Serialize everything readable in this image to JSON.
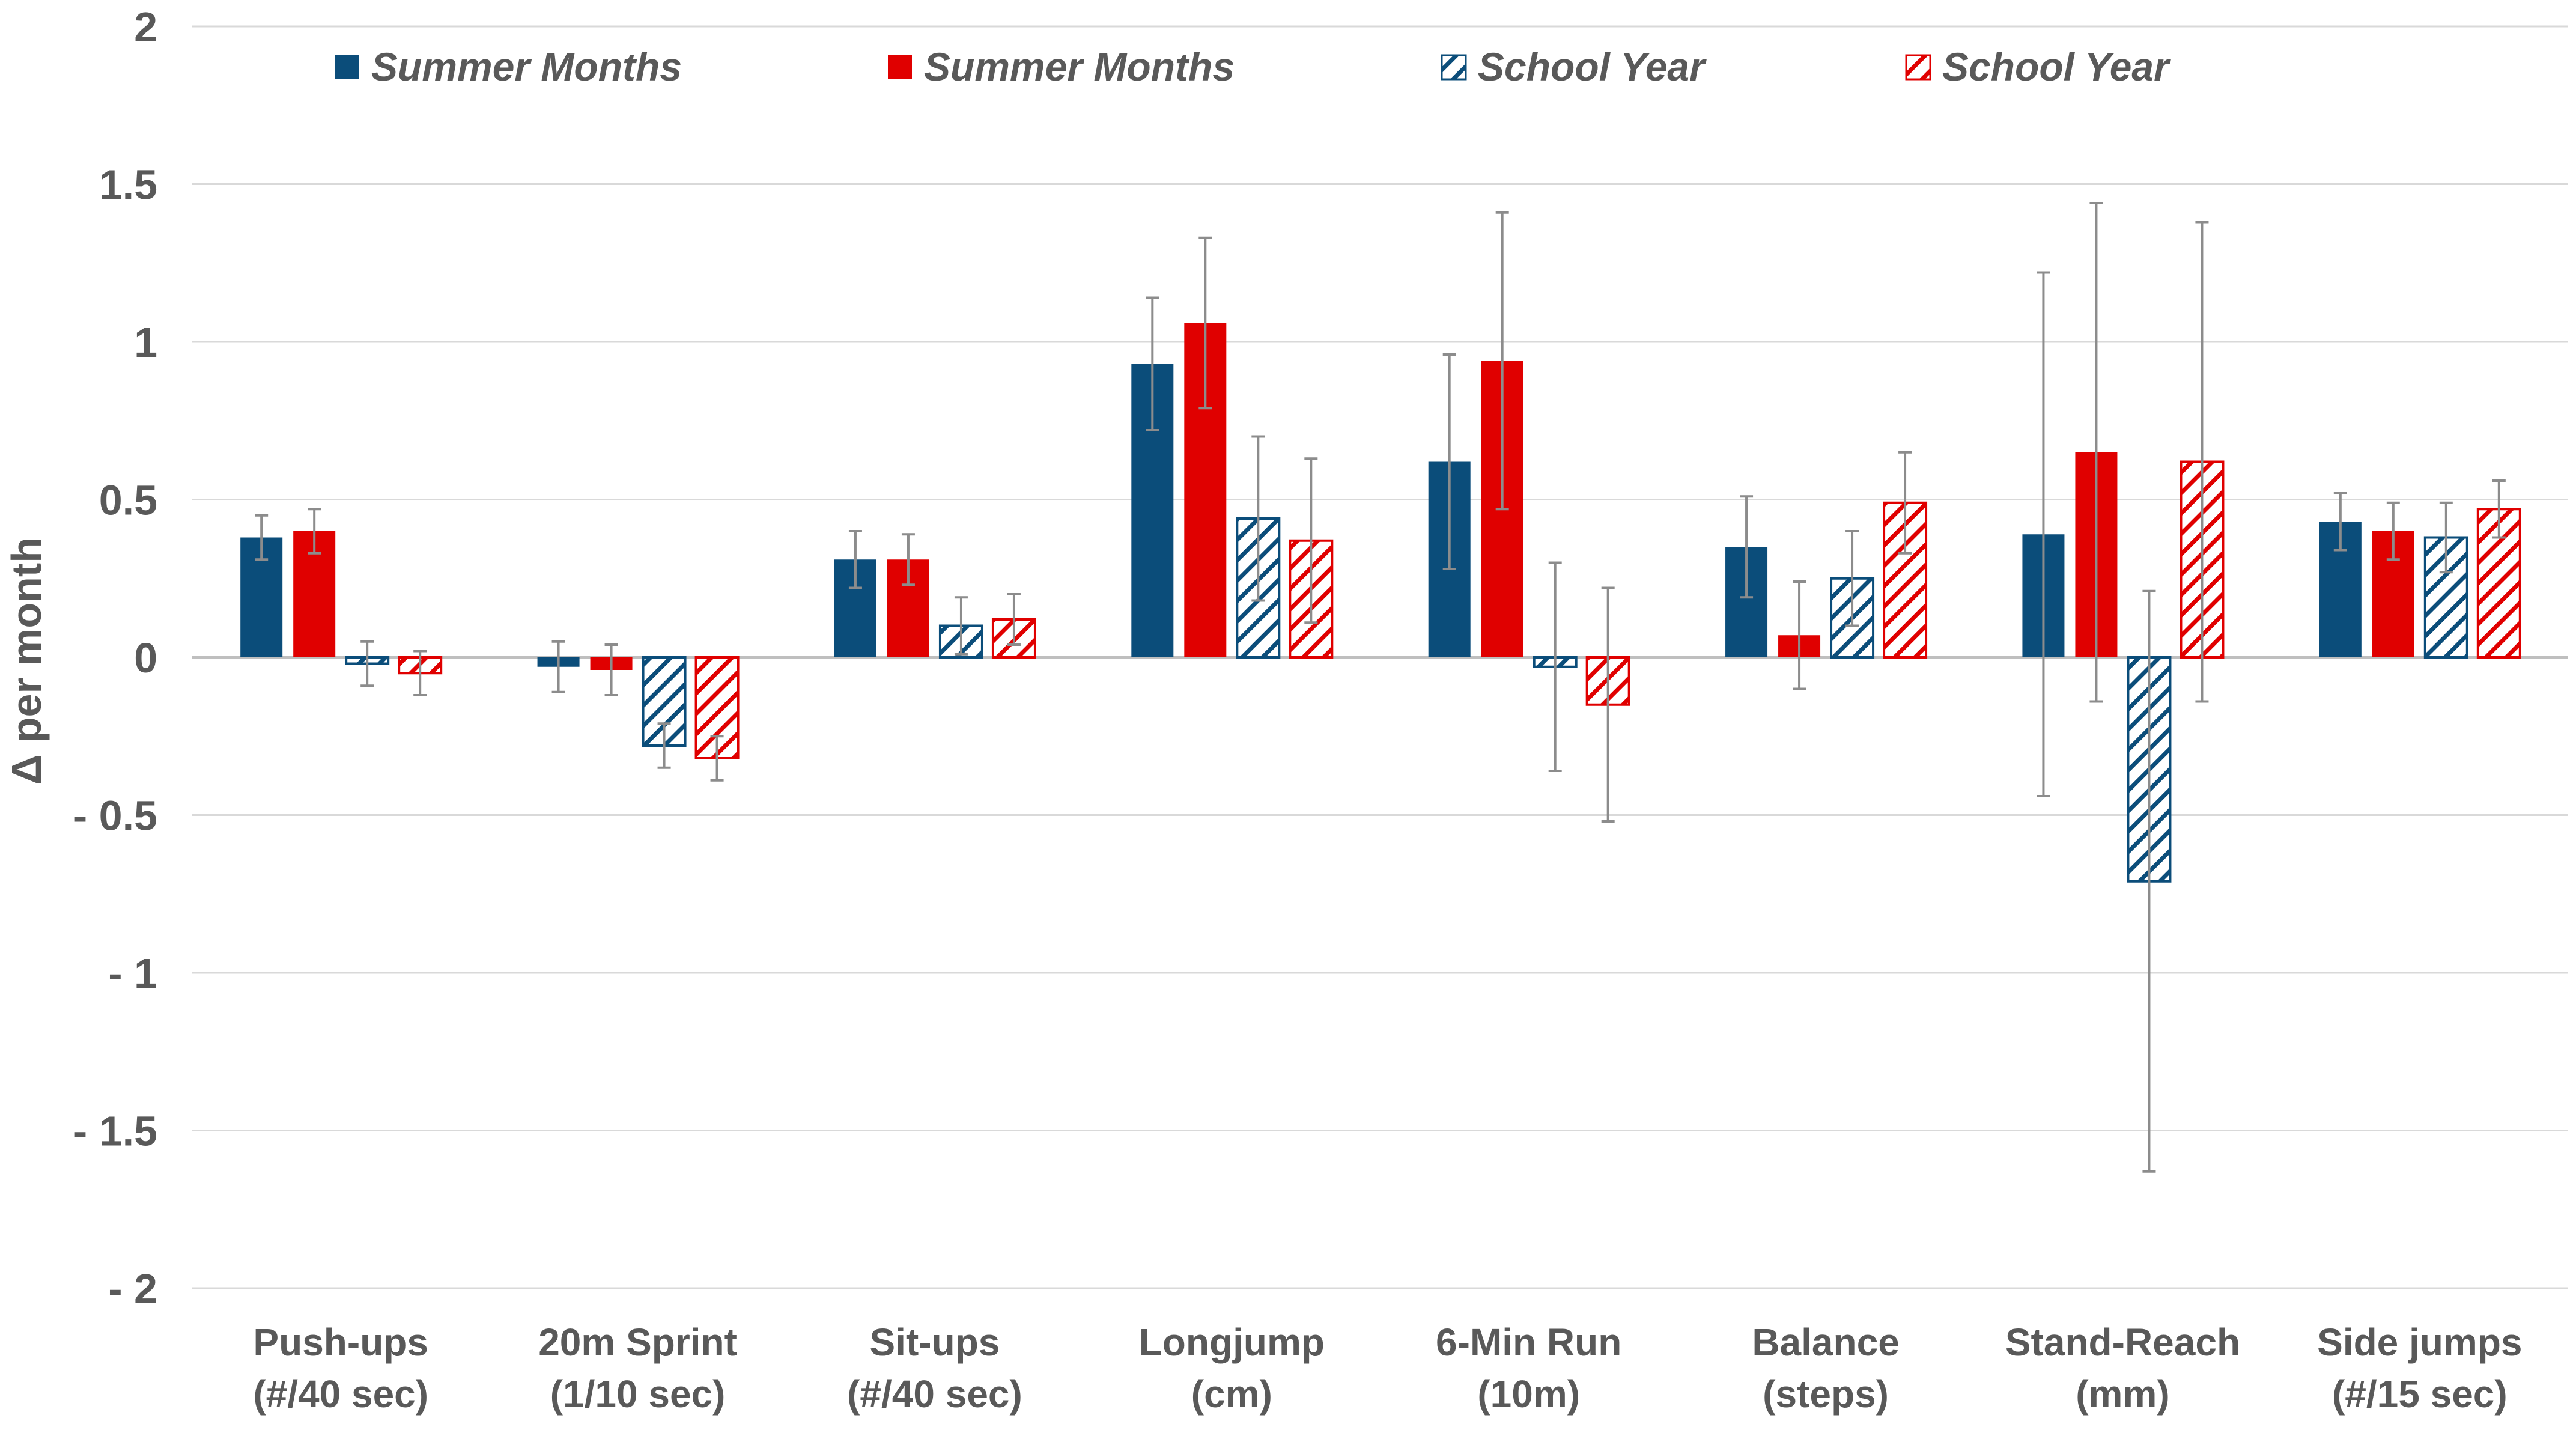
{
  "chart_data": {
    "type": "bar",
    "title": "",
    "xlabel": "",
    "ylabel": "Δ per month",
    "ylim": [
      -2,
      2
    ],
    "yticks": [
      {
        "value": 2,
        "label": "2"
      },
      {
        "value": 1.5,
        "label": "1.5"
      },
      {
        "value": 1,
        "label": "1"
      },
      {
        "value": 0.5,
        "label": "0.5"
      },
      {
        "value": 0,
        "label": "0"
      },
      {
        "value": -0.5,
        "label": "- 0.5"
      },
      {
        "value": -1,
        "label": "- 1"
      },
      {
        "value": -1.5,
        "label": "- 1.5"
      },
      {
        "value": -2,
        "label": "- 2"
      }
    ],
    "grid": true,
    "legend_position": "top",
    "categories": [
      [
        "Push-ups",
        "(#/40 sec)"
      ],
      [
        "20m Sprint",
        "(1/10 sec)"
      ],
      [
        "Sit-ups",
        "(#/40 sec)"
      ],
      [
        "Longjump",
        "(cm)"
      ],
      [
        "6-Min Run",
        "(10m)"
      ],
      [
        "Balance",
        "(steps)"
      ],
      [
        "Stand-Reach",
        "(mm)"
      ],
      [
        "Side jumps",
        "(#/15 sec)"
      ]
    ],
    "series": [
      {
        "name": "Summer Months",
        "color": "#0B4D7A",
        "pattern": "solid",
        "values": [
          0.38,
          -0.03,
          0.31,
          0.93,
          0.62,
          0.35,
          0.39,
          0.43
        ],
        "errors": [
          0.07,
          0.08,
          0.09,
          0.21,
          0.34,
          0.16,
          0.83,
          0.09
        ]
      },
      {
        "name": "Summer Months",
        "color": "#E00000",
        "pattern": "solid",
        "values": [
          0.4,
          -0.04,
          0.31,
          1.06,
          0.94,
          0.07,
          0.65,
          0.4
        ],
        "errors": [
          0.07,
          0.08,
          0.08,
          0.27,
          0.47,
          0.17,
          0.79,
          0.09
        ]
      },
      {
        "name": "School Year",
        "color": "#0B4D7A",
        "pattern": "hatch",
        "values": [
          -0.02,
          -0.28,
          0.1,
          0.44,
          -0.03,
          0.25,
          -0.71,
          0.38
        ],
        "errors": [
          0.07,
          0.07,
          0.09,
          0.26,
          0.33,
          0.15,
          0.92,
          0.11
        ]
      },
      {
        "name": "School Year",
        "color": "#E00000",
        "pattern": "hatch",
        "values": [
          -0.05,
          -0.32,
          0.12,
          0.37,
          -0.15,
          0.49,
          0.62,
          0.47
        ],
        "errors": [
          0.07,
          0.07,
          0.08,
          0.26,
          0.37,
          0.16,
          0.76,
          0.09
        ]
      }
    ]
  }
}
